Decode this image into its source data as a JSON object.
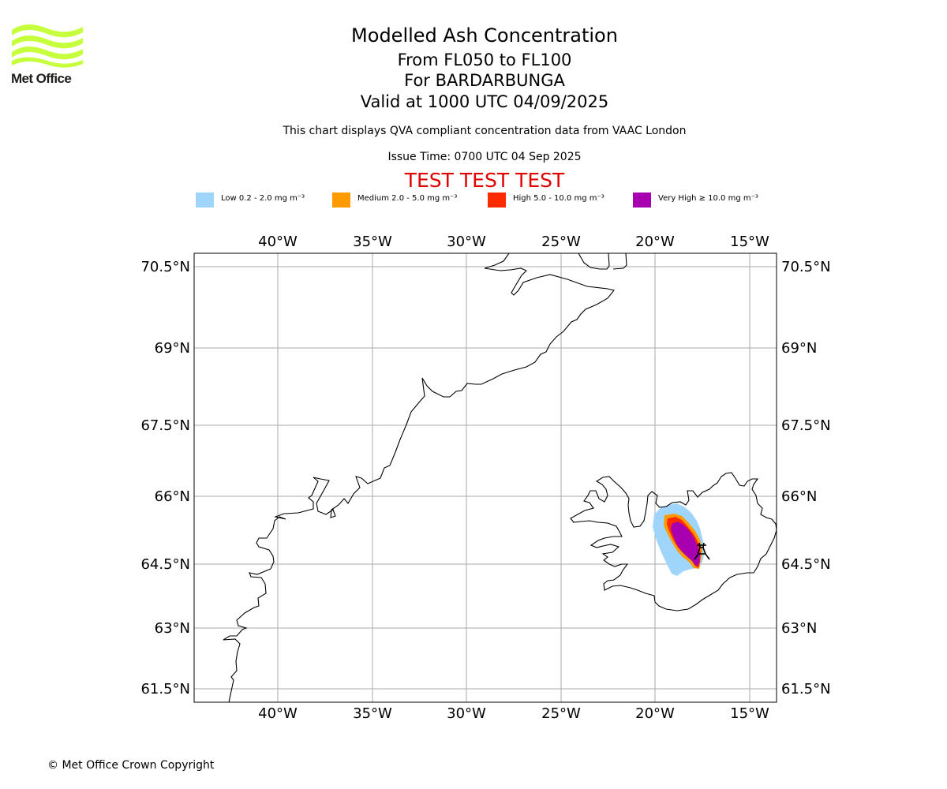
{
  "logo": {
    "text": "Met Office",
    "wave_color": "#c6ff3b"
  },
  "header": {
    "title": "Modelled Ash Concentration",
    "flight_levels": "From FL050 to FL100",
    "volcano": "For BARDARBUNGA",
    "valid_time": "Valid at 1000 UTC 04/09/2025",
    "description": "This chart displays QVA compliant concentration data from VAAC London",
    "issue_time": "Issue Time: 0700 UTC 04 Sep 2025",
    "test_banner": "TEST TEST TEST"
  },
  "legend": [
    {
      "text": "Low 0.2 - 2.0 mg m⁻³",
      "color": "#9fd4fb"
    },
    {
      "text": "Medium 2.0 - 5.0 mg m⁻³",
      "color": "#ff9a00"
    },
    {
      "text": "High 5.0 - 10.0 mg m⁻³",
      "color": "#ff2b00"
    },
    {
      "text": "Very High ≥ 10.0 mg m⁻³",
      "color": "#a800b0"
    }
  ],
  "map": {
    "longitude_labels": [
      "40°W",
      "35°W",
      "30°W",
      "25°W",
      "20°W",
      "15°W"
    ],
    "latitude_labels": [
      "70.5°N",
      "69°N",
      "67.5°N",
      "66°N",
      "64.5°N",
      "63°N",
      "61.5°N"
    ],
    "grid_color": "#aaaaaa",
    "volcano_marker": "volcano-icon"
  },
  "footer": {
    "copyright": "© Met Office Crown Copyright"
  }
}
